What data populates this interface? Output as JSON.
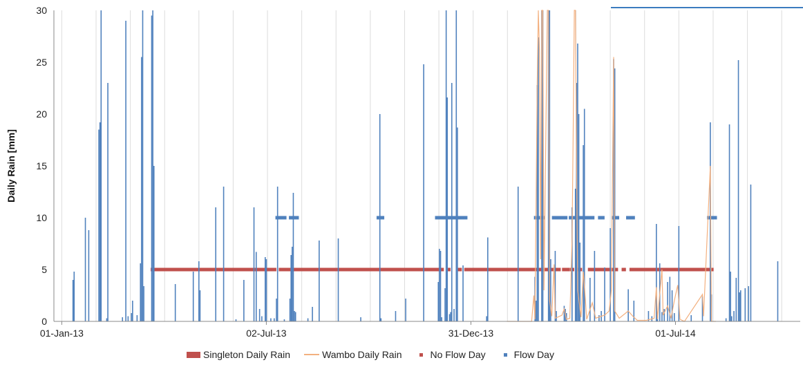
{
  "chart_data": {
    "type": "bar",
    "title": "",
    "ylabel": "Daily Rain [mm]",
    "xlabel": "",
    "ylim": [
      0,
      30
    ],
    "y_ticks": [
      "0",
      "5",
      "10",
      "15",
      "20",
      "25",
      "30"
    ],
    "x_range": [
      "2012-12-25",
      "2014-10-20"
    ],
    "x_ticks": [
      {
        "date": "2013-01-01",
        "label": "01-Jan-13"
      },
      {
        "date": "2013-07-02",
        "label": "02-Jul-13"
      },
      {
        "date": "2013-12-31",
        "label": "31-Dec-13"
      },
      {
        "date": "2014-07-01",
        "label": "01-Jul-14"
      }
    ],
    "grid": "vertical",
    "colors": {
      "singleton_bar": "#4f81bd",
      "singleton_legend": "#c0504d",
      "wambo_line": "#f3b07f",
      "no_flow": "#c0504d",
      "flow": "#4f81bd",
      "grid": "#dcdcdc"
    },
    "series": [
      {
        "name": "Singleton Daily Rain",
        "kind": "bar",
        "points": [
          [
            "2013-01-11",
            4.0
          ],
          [
            "2013-01-12",
            4.8
          ],
          [
            "2013-01-22",
            10.0
          ],
          [
            "2013-01-25",
            8.8
          ],
          [
            "2013-02-03",
            18.5
          ],
          [
            "2013-02-04",
            19.2
          ],
          [
            "2013-02-05",
            30.0
          ],
          [
            "2013-02-10",
            0.3
          ],
          [
            "2013-02-11",
            23.0
          ],
          [
            "2013-02-24",
            0.4
          ],
          [
            "2013-02-27",
            29.0
          ],
          [
            "2013-03-01",
            0.5
          ],
          [
            "2013-03-04",
            0.8
          ],
          [
            "2013-03-05",
            2.0
          ],
          [
            "2013-03-09",
            0.6
          ],
          [
            "2013-03-12",
            5.6
          ],
          [
            "2013-03-13",
            25.5
          ],
          [
            "2013-03-14",
            30.0
          ],
          [
            "2013-03-15",
            3.4
          ],
          [
            "2013-03-22",
            29.5
          ],
          [
            "2013-03-23",
            30.0
          ],
          [
            "2013-03-24",
            15.0
          ],
          [
            "2013-04-12",
            3.6
          ],
          [
            "2013-04-28",
            4.8
          ],
          [
            "2013-05-03",
            5.8
          ],
          [
            "2013-05-04",
            3.0
          ],
          [
            "2013-05-18",
            11.0
          ],
          [
            "2013-05-25",
            13.0
          ],
          [
            "2013-06-05",
            0.2
          ],
          [
            "2013-06-12",
            4.0
          ],
          [
            "2013-06-21",
            11.0
          ],
          [
            "2013-06-23",
            6.7
          ],
          [
            "2013-06-26",
            1.2
          ],
          [
            "2013-06-28",
            0.5
          ],
          [
            "2013-07-01",
            6.2
          ],
          [
            "2013-07-02",
            6.0
          ],
          [
            "2013-07-06",
            0.3
          ],
          [
            "2013-07-09",
            0.3
          ],
          [
            "2013-07-11",
            2.2
          ],
          [
            "2013-07-12",
            13.0
          ],
          [
            "2013-07-18",
            0.2
          ],
          [
            "2013-07-23",
            2.2
          ],
          [
            "2013-07-24",
            6.4
          ],
          [
            "2013-07-25",
            7.2
          ],
          [
            "2013-07-26",
            12.4
          ],
          [
            "2013-07-27",
            1.0
          ],
          [
            "2013-07-28",
            0.9
          ],
          [
            "2013-08-08",
            0.3
          ],
          [
            "2013-08-12",
            1.4
          ],
          [
            "2013-08-18",
            7.8
          ],
          [
            "2013-09-04",
            8.0
          ],
          [
            "2013-09-24",
            0.4
          ],
          [
            "2013-10-11",
            20.0
          ],
          [
            "2013-10-12",
            0.3
          ],
          [
            "2013-10-25",
            1.0
          ],
          [
            "2013-11-03",
            2.2
          ],
          [
            "2013-11-19",
            24.8
          ],
          [
            "2013-12-02",
            3.8
          ],
          [
            "2013-12-03",
            7.0
          ],
          [
            "2013-12-04",
            6.8
          ],
          [
            "2013-12-05",
            0.4
          ],
          [
            "2013-12-08",
            3.2
          ],
          [
            "2013-12-09",
            30.0
          ],
          [
            "2013-12-10",
            21.6
          ],
          [
            "2013-12-12",
            0.7
          ],
          [
            "2013-12-13",
            0.9
          ],
          [
            "2013-12-14",
            23.0
          ],
          [
            "2013-12-16",
            1.2
          ],
          [
            "2013-12-18",
            30.0
          ],
          [
            "2013-12-19",
            18.7
          ],
          [
            "2013-12-24",
            5.4
          ],
          [
            "2014-01-14",
            0.5
          ],
          [
            "2014-01-15",
            8.1
          ],
          [
            "2014-02-11",
            13.0
          ],
          [
            "2014-02-26",
            4.3
          ],
          [
            "2014-02-27",
            2.0
          ],
          [
            "2014-02-28",
            22.8
          ],
          [
            "2014-03-01",
            27.4
          ],
          [
            "2014-03-04",
            30.0
          ],
          [
            "2014-03-05",
            30.0
          ],
          [
            "2014-03-10",
            30.0
          ],
          [
            "2014-03-11",
            30.0
          ],
          [
            "2014-03-12",
            6.0
          ],
          [
            "2014-03-16",
            6.8
          ],
          [
            "2014-03-17",
            1.0
          ],
          [
            "2014-03-24",
            1.5
          ],
          [
            "2014-03-25",
            1.2
          ],
          [
            "2014-03-26",
            0.8
          ],
          [
            "2014-03-31",
            11.0
          ],
          [
            "2014-04-03",
            12.8
          ],
          [
            "2014-04-04",
            23.0
          ],
          [
            "2014-04-05",
            26.8
          ],
          [
            "2014-04-06",
            20.0
          ],
          [
            "2014-04-07",
            7.6
          ],
          [
            "2014-04-10",
            17.0
          ],
          [
            "2014-04-11",
            20.5
          ],
          [
            "2014-04-16",
            4.2
          ],
          [
            "2014-04-20",
            6.8
          ],
          [
            "2014-04-24",
            0.6
          ],
          [
            "2014-04-26",
            1.0
          ],
          [
            "2014-04-29",
            5.2
          ],
          [
            "2014-05-04",
            9.0
          ],
          [
            "2014-05-07",
            25.3
          ],
          [
            "2014-05-08",
            24.4
          ],
          [
            "2014-05-20",
            3.1
          ],
          [
            "2014-05-25",
            2.0
          ],
          [
            "2014-06-07",
            1.0
          ],
          [
            "2014-06-10",
            0.5
          ],
          [
            "2014-06-14",
            9.4
          ],
          [
            "2014-06-15",
            0.6
          ],
          [
            "2014-06-17",
            5.6
          ],
          [
            "2014-06-19",
            0.9
          ],
          [
            "2014-06-21",
            1.2
          ],
          [
            "2014-06-24",
            3.8
          ],
          [
            "2014-06-26",
            4.3
          ],
          [
            "2014-06-28",
            3.0
          ],
          [
            "2014-06-30",
            0.8
          ],
          [
            "2014-07-04",
            9.2
          ],
          [
            "2014-07-15",
            0.6
          ],
          [
            "2014-07-25",
            2.4
          ],
          [
            "2014-08-01",
            19.2
          ],
          [
            "2014-08-02",
            2.6
          ],
          [
            "2014-08-15",
            0.3
          ],
          [
            "2014-08-18",
            19.0
          ],
          [
            "2014-08-19",
            4.8
          ],
          [
            "2014-08-20",
            0.5
          ],
          [
            "2014-08-22",
            1.0
          ],
          [
            "2014-08-24",
            4.2
          ],
          [
            "2014-08-26",
            25.2
          ],
          [
            "2014-08-27",
            2.8
          ],
          [
            "2014-08-28",
            3.0
          ],
          [
            "2014-09-01",
            3.2
          ],
          [
            "2014-09-04",
            3.4
          ],
          [
            "2014-09-06",
            13.2
          ],
          [
            "2014-09-30",
            5.8
          ]
        ]
      },
      {
        "name": "Wambo Daily Rain",
        "kind": "line",
        "points": [
          [
            "2014-02-01",
            0
          ],
          [
            "2014-02-23",
            0
          ],
          [
            "2014-02-25",
            2.5
          ],
          [
            "2014-02-26",
            0.2
          ],
          [
            "2014-02-28",
            23.0
          ],
          [
            "2014-03-01",
            30.0
          ],
          [
            "2014-03-02",
            26.0
          ],
          [
            "2014-03-03",
            6.0
          ],
          [
            "2014-03-04",
            30.0
          ],
          [
            "2014-03-05",
            30.0
          ],
          [
            "2014-03-06",
            3.0
          ],
          [
            "2014-03-09",
            30.0
          ],
          [
            "2014-03-10",
            30.0
          ],
          [
            "2014-03-11",
            2.0
          ],
          [
            "2014-03-13",
            0.5
          ],
          [
            "2014-03-15",
            5.5
          ],
          [
            "2014-03-16",
            0.3
          ],
          [
            "2014-03-22",
            0.6
          ],
          [
            "2014-03-24",
            1.2
          ],
          [
            "2014-03-26",
            0.2
          ],
          [
            "2014-03-29",
            0.3
          ],
          [
            "2014-03-31",
            7.9
          ],
          [
            "2014-04-01",
            18.0
          ],
          [
            "2014-04-02",
            30.0
          ],
          [
            "2014-04-03",
            30.0
          ],
          [
            "2014-04-04",
            15.0
          ],
          [
            "2014-04-05",
            3.0
          ],
          [
            "2014-04-08",
            0.4
          ],
          [
            "2014-04-10",
            4.8
          ],
          [
            "2014-04-11",
            3.5
          ],
          [
            "2014-04-13",
            0.2
          ],
          [
            "2014-04-18",
            1.8
          ],
          [
            "2014-04-21",
            0.3
          ],
          [
            "2014-04-26",
            0.5
          ],
          [
            "2014-04-29",
            0.6
          ],
          [
            "2014-05-03",
            1.0
          ],
          [
            "2014-05-05",
            3.0
          ],
          [
            "2014-05-07",
            25.5
          ],
          [
            "2014-05-08",
            1.0
          ],
          [
            "2014-05-12",
            0.3
          ],
          [
            "2014-05-20",
            1.0
          ],
          [
            "2014-05-24",
            0.5
          ],
          [
            "2014-05-28",
            0.1
          ],
          [
            "2014-06-05",
            0.1
          ],
          [
            "2014-06-12",
            0.3
          ],
          [
            "2014-06-14",
            3.3
          ],
          [
            "2014-06-15",
            0.2
          ],
          [
            "2014-06-19",
            5.0
          ],
          [
            "2014-06-20",
            0.6
          ],
          [
            "2014-06-24",
            1.5
          ],
          [
            "2014-06-27",
            0.3
          ],
          [
            "2014-06-30",
            2.0
          ],
          [
            "2014-07-03",
            3.5
          ],
          [
            "2014-07-05",
            0.2
          ],
          [
            "2014-07-09",
            0
          ],
          [
            "2014-07-25",
            2.6
          ],
          [
            "2014-07-26",
            0.5
          ],
          [
            "2014-08-01",
            15.0
          ],
          [
            "2014-08-02",
            0
          ],
          [
            "2014-08-06",
            0
          ]
        ]
      },
      {
        "name": "No Flow Day",
        "kind": "dots",
        "y": 5,
        "ranges": [
          [
            "2013-03-22",
            "2013-07-10"
          ],
          [
            "2013-07-14",
            "2013-12-06"
          ],
          [
            "2013-12-11",
            "2013-12-12"
          ],
          [
            "2013-12-20",
            "2013-12-22"
          ],
          [
            "2013-12-26",
            "2014-03-20"
          ],
          [
            "2014-03-23",
            "2014-03-28"
          ],
          [
            "2014-03-30",
            "2014-04-01"
          ],
          [
            "2014-04-05",
            "2014-04-08"
          ],
          [
            "2014-04-15",
            "2014-05-10"
          ],
          [
            "2014-05-15",
            "2014-05-17"
          ],
          [
            "2014-05-22",
            "2014-08-03"
          ]
        ]
      },
      {
        "name": "Flow Day",
        "kind": "dots",
        "y": 10,
        "ranges": [
          [
            "2013-07-11",
            "2013-07-19"
          ],
          [
            "2013-07-23",
            "2013-07-30"
          ],
          [
            "2013-10-09",
            "2013-10-14"
          ],
          [
            "2013-11-30",
            "2013-12-27"
          ],
          [
            "2014-02-26",
            "2014-03-06"
          ],
          [
            "2014-03-14",
            "2014-03-26"
          ],
          [
            "2014-03-29",
            "2014-04-01"
          ],
          [
            "2014-04-02",
            "2014-04-19"
          ],
          [
            "2014-04-24",
            "2014-04-28"
          ],
          [
            "2014-05-06",
            "2014-05-11"
          ],
          [
            "2014-05-19",
            "2014-05-25"
          ],
          [
            "2014-07-30",
            "2014-08-06"
          ]
        ]
      }
    ],
    "legend": {
      "position": "bottom",
      "items": [
        {
          "label": "Singleton Daily Rain",
          "swatch": "bar",
          "color": "#c0504d"
        },
        {
          "label": "Wambo Daily Rain",
          "swatch": "line",
          "color": "#f3b07f"
        },
        {
          "label": "No Flow Day",
          "swatch": "dot",
          "color": "#c0504d"
        },
        {
          "label": "Flow Day",
          "swatch": "dot",
          "color": "#4f81bd"
        }
      ]
    }
  }
}
